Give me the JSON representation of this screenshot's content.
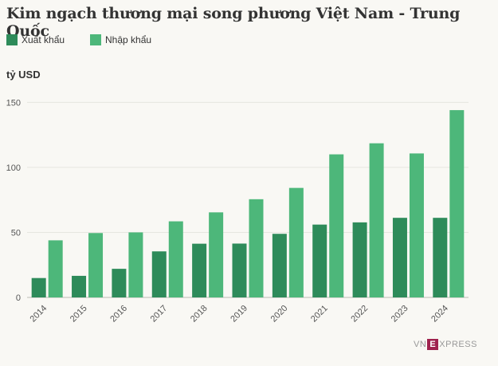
{
  "title": "Kim ngạch thương mại song phương Việt Nam - Trung Quốc",
  "unit_label": "tỷ USD",
  "logo": {
    "left": "VN",
    "mark": "E",
    "right": "XPRESS"
  },
  "colors": {
    "export": "#2e8b5a",
    "import": "#4db77a",
    "grid": "#e6e6e0",
    "axis": "#555555"
  },
  "chart_data": {
    "type": "bar",
    "title": "Kim ngạch thương mại song phương Việt Nam - Trung Quốc",
    "ylabel": "tỷ USD",
    "xlabel": "",
    "ylim": [
      0,
      160
    ],
    "yticks": [
      0,
      50,
      100,
      150
    ],
    "grid": true,
    "legend_position": "top-left",
    "categories": [
      "2014",
      "2015",
      "2016",
      "2017",
      "2018",
      "2019",
      "2020",
      "2021",
      "2022",
      "2023",
      "2024"
    ],
    "series": [
      {
        "name": "Xuất khẩu",
        "color": "#2e8b5a",
        "values": [
          14.9,
          16.6,
          22.0,
          35.4,
          41.3,
          41.4,
          48.9,
          56.0,
          57.7,
          61.2,
          61.2
        ]
      },
      {
        "name": "Nhập khẩu",
        "color": "#4db77a",
        "values": [
          43.9,
          49.5,
          50.0,
          58.5,
          65.4,
          75.5,
          84.2,
          110.0,
          118.5,
          110.7,
          144.0
        ]
      }
    ]
  }
}
